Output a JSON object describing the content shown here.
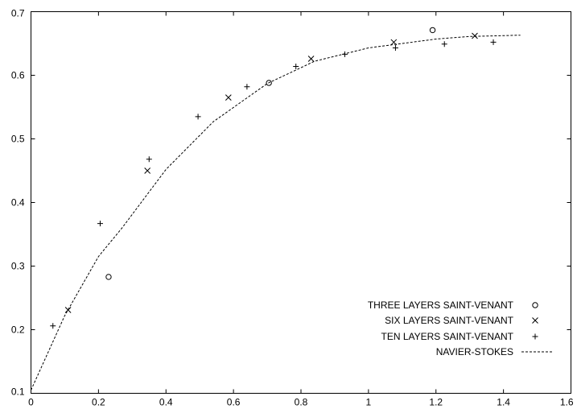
{
  "chart_data": {
    "type": "scatter",
    "title": "",
    "xlabel": "",
    "ylabel": "",
    "xlim": [
      0,
      1.6
    ],
    "ylim": [
      0.1,
      0.7
    ],
    "x_ticks": [
      "0",
      "0.2",
      "0.4",
      "0.6",
      "0.8",
      "1",
      "1.2",
      "1.4",
      "1.6"
    ],
    "y_ticks": [
      "0.1",
      "0.2",
      "0.3",
      "0.4",
      "0.5",
      "0.6",
      "0.7"
    ],
    "grid": false,
    "legend_position": "bottom-right",
    "series": [
      {
        "name": "THREE LAYERS SAINT-VENANT",
        "marker": "circle",
        "points": [
          [
            0.23,
            0.283
          ],
          [
            0.705,
            0.588
          ],
          [
            1.19,
            0.671
          ]
        ]
      },
      {
        "name": "SIX LAYERS SAINT-VENANT",
        "marker": "x",
        "points": [
          [
            0.11,
            0.231
          ],
          [
            0.345,
            0.45
          ],
          [
            0.585,
            0.565
          ],
          [
            0.83,
            0.626
          ],
          [
            1.075,
            0.652
          ],
          [
            1.315,
            0.662
          ]
        ]
      },
      {
        "name": "TEN LAYERS SAINT-VENANT",
        "marker": "plus",
        "points": [
          [
            0.065,
            0.206
          ],
          [
            0.205,
            0.367
          ],
          [
            0.35,
            0.468
          ],
          [
            0.495,
            0.535
          ],
          [
            0.64,
            0.582
          ],
          [
            0.785,
            0.614
          ],
          [
            0.93,
            0.633
          ],
          [
            1.08,
            0.643
          ],
          [
            1.225,
            0.649
          ],
          [
            1.37,
            0.652
          ]
        ]
      },
      {
        "name": "NAVIER-STOKES",
        "style": "dashed-line",
        "points": [
          [
            0.0,
            0.105
          ],
          [
            0.1,
            0.222
          ],
          [
            0.2,
            0.315
          ],
          [
            0.27,
            0.36
          ],
          [
            0.4,
            0.452
          ],
          [
            0.54,
            0.527
          ],
          [
            0.7,
            0.587
          ],
          [
            0.84,
            0.622
          ],
          [
            1.0,
            0.643
          ],
          [
            1.2,
            0.657
          ],
          [
            1.3,
            0.661
          ],
          [
            1.45,
            0.663
          ]
        ]
      }
    ]
  }
}
